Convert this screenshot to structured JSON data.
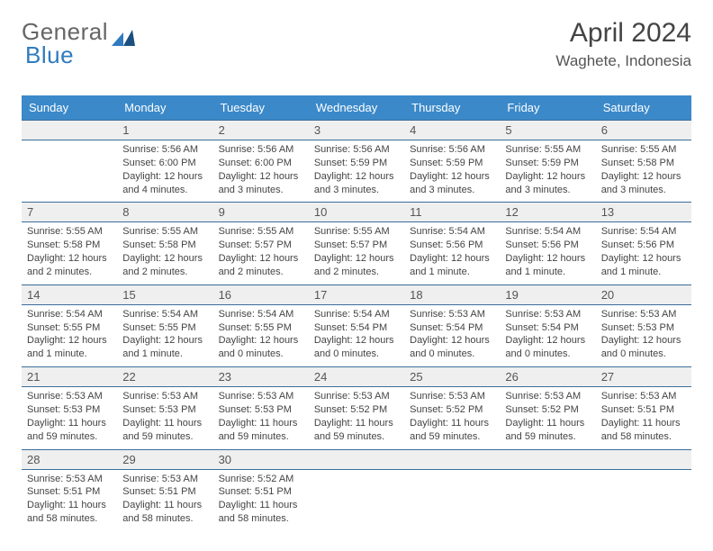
{
  "brand": {
    "part1": "General",
    "part2": "Blue"
  },
  "title": "April 2024",
  "location": "Waghete, Indonesia",
  "colors": {
    "header_bg": "#3b89c9",
    "header_text": "#ffffff",
    "daynum_bg": "#efefef",
    "rule": "#3b6e9a",
    "page_bg": "#ffffff",
    "body_text": "#444444",
    "title_text": "#444444"
  },
  "weekdays": [
    "Sunday",
    "Monday",
    "Tuesday",
    "Wednesday",
    "Thursday",
    "Friday",
    "Saturday"
  ],
  "weeks": [
    [
      {
        "day": "",
        "lines": []
      },
      {
        "day": "1",
        "lines": [
          "Sunrise: 5:56 AM",
          "Sunset: 6:00 PM",
          "Daylight: 12 hours and 4 minutes."
        ]
      },
      {
        "day": "2",
        "lines": [
          "Sunrise: 5:56 AM",
          "Sunset: 6:00 PM",
          "Daylight: 12 hours and 3 minutes."
        ]
      },
      {
        "day": "3",
        "lines": [
          "Sunrise: 5:56 AM",
          "Sunset: 5:59 PM",
          "Daylight: 12 hours and 3 minutes."
        ]
      },
      {
        "day": "4",
        "lines": [
          "Sunrise: 5:56 AM",
          "Sunset: 5:59 PM",
          "Daylight: 12 hours and 3 minutes."
        ]
      },
      {
        "day": "5",
        "lines": [
          "Sunrise: 5:55 AM",
          "Sunset: 5:59 PM",
          "Daylight: 12 hours and 3 minutes."
        ]
      },
      {
        "day": "6",
        "lines": [
          "Sunrise: 5:55 AM",
          "Sunset: 5:58 PM",
          "Daylight: 12 hours and 3 minutes."
        ]
      }
    ],
    [
      {
        "day": "7",
        "lines": [
          "Sunrise: 5:55 AM",
          "Sunset: 5:58 PM",
          "Daylight: 12 hours and 2 minutes."
        ]
      },
      {
        "day": "8",
        "lines": [
          "Sunrise: 5:55 AM",
          "Sunset: 5:58 PM",
          "Daylight: 12 hours and 2 minutes."
        ]
      },
      {
        "day": "9",
        "lines": [
          "Sunrise: 5:55 AM",
          "Sunset: 5:57 PM",
          "Daylight: 12 hours and 2 minutes."
        ]
      },
      {
        "day": "10",
        "lines": [
          "Sunrise: 5:55 AM",
          "Sunset: 5:57 PM",
          "Daylight: 12 hours and 2 minutes."
        ]
      },
      {
        "day": "11",
        "lines": [
          "Sunrise: 5:54 AM",
          "Sunset: 5:56 PM",
          "Daylight: 12 hours and 1 minute."
        ]
      },
      {
        "day": "12",
        "lines": [
          "Sunrise: 5:54 AM",
          "Sunset: 5:56 PM",
          "Daylight: 12 hours and 1 minute."
        ]
      },
      {
        "day": "13",
        "lines": [
          "Sunrise: 5:54 AM",
          "Sunset: 5:56 PM",
          "Daylight: 12 hours and 1 minute."
        ]
      }
    ],
    [
      {
        "day": "14",
        "lines": [
          "Sunrise: 5:54 AM",
          "Sunset: 5:55 PM",
          "Daylight: 12 hours and 1 minute."
        ]
      },
      {
        "day": "15",
        "lines": [
          "Sunrise: 5:54 AM",
          "Sunset: 5:55 PM",
          "Daylight: 12 hours and 1 minute."
        ]
      },
      {
        "day": "16",
        "lines": [
          "Sunrise: 5:54 AM",
          "Sunset: 5:55 PM",
          "Daylight: 12 hours and 0 minutes."
        ]
      },
      {
        "day": "17",
        "lines": [
          "Sunrise: 5:54 AM",
          "Sunset: 5:54 PM",
          "Daylight: 12 hours and 0 minutes."
        ]
      },
      {
        "day": "18",
        "lines": [
          "Sunrise: 5:53 AM",
          "Sunset: 5:54 PM",
          "Daylight: 12 hours and 0 minutes."
        ]
      },
      {
        "day": "19",
        "lines": [
          "Sunrise: 5:53 AM",
          "Sunset: 5:54 PM",
          "Daylight: 12 hours and 0 minutes."
        ]
      },
      {
        "day": "20",
        "lines": [
          "Sunrise: 5:53 AM",
          "Sunset: 5:53 PM",
          "Daylight: 12 hours and 0 minutes."
        ]
      }
    ],
    [
      {
        "day": "21",
        "lines": [
          "Sunrise: 5:53 AM",
          "Sunset: 5:53 PM",
          "Daylight: 11 hours and 59 minutes."
        ]
      },
      {
        "day": "22",
        "lines": [
          "Sunrise: 5:53 AM",
          "Sunset: 5:53 PM",
          "Daylight: 11 hours and 59 minutes."
        ]
      },
      {
        "day": "23",
        "lines": [
          "Sunrise: 5:53 AM",
          "Sunset: 5:53 PM",
          "Daylight: 11 hours and 59 minutes."
        ]
      },
      {
        "day": "24",
        "lines": [
          "Sunrise: 5:53 AM",
          "Sunset: 5:52 PM",
          "Daylight: 11 hours and 59 minutes."
        ]
      },
      {
        "day": "25",
        "lines": [
          "Sunrise: 5:53 AM",
          "Sunset: 5:52 PM",
          "Daylight: 11 hours and 59 minutes."
        ]
      },
      {
        "day": "26",
        "lines": [
          "Sunrise: 5:53 AM",
          "Sunset: 5:52 PM",
          "Daylight: 11 hours and 59 minutes."
        ]
      },
      {
        "day": "27",
        "lines": [
          "Sunrise: 5:53 AM",
          "Sunset: 5:51 PM",
          "Daylight: 11 hours and 58 minutes."
        ]
      }
    ],
    [
      {
        "day": "28",
        "lines": [
          "Sunrise: 5:53 AM",
          "Sunset: 5:51 PM",
          "Daylight: 11 hours and 58 minutes."
        ]
      },
      {
        "day": "29",
        "lines": [
          "Sunrise: 5:53 AM",
          "Sunset: 5:51 PM",
          "Daylight: 11 hours and 58 minutes."
        ]
      },
      {
        "day": "30",
        "lines": [
          "Sunrise: 5:52 AM",
          "Sunset: 5:51 PM",
          "Daylight: 11 hours and 58 minutes."
        ]
      },
      {
        "day": "",
        "lines": []
      },
      {
        "day": "",
        "lines": []
      },
      {
        "day": "",
        "lines": []
      },
      {
        "day": "",
        "lines": []
      }
    ]
  ]
}
